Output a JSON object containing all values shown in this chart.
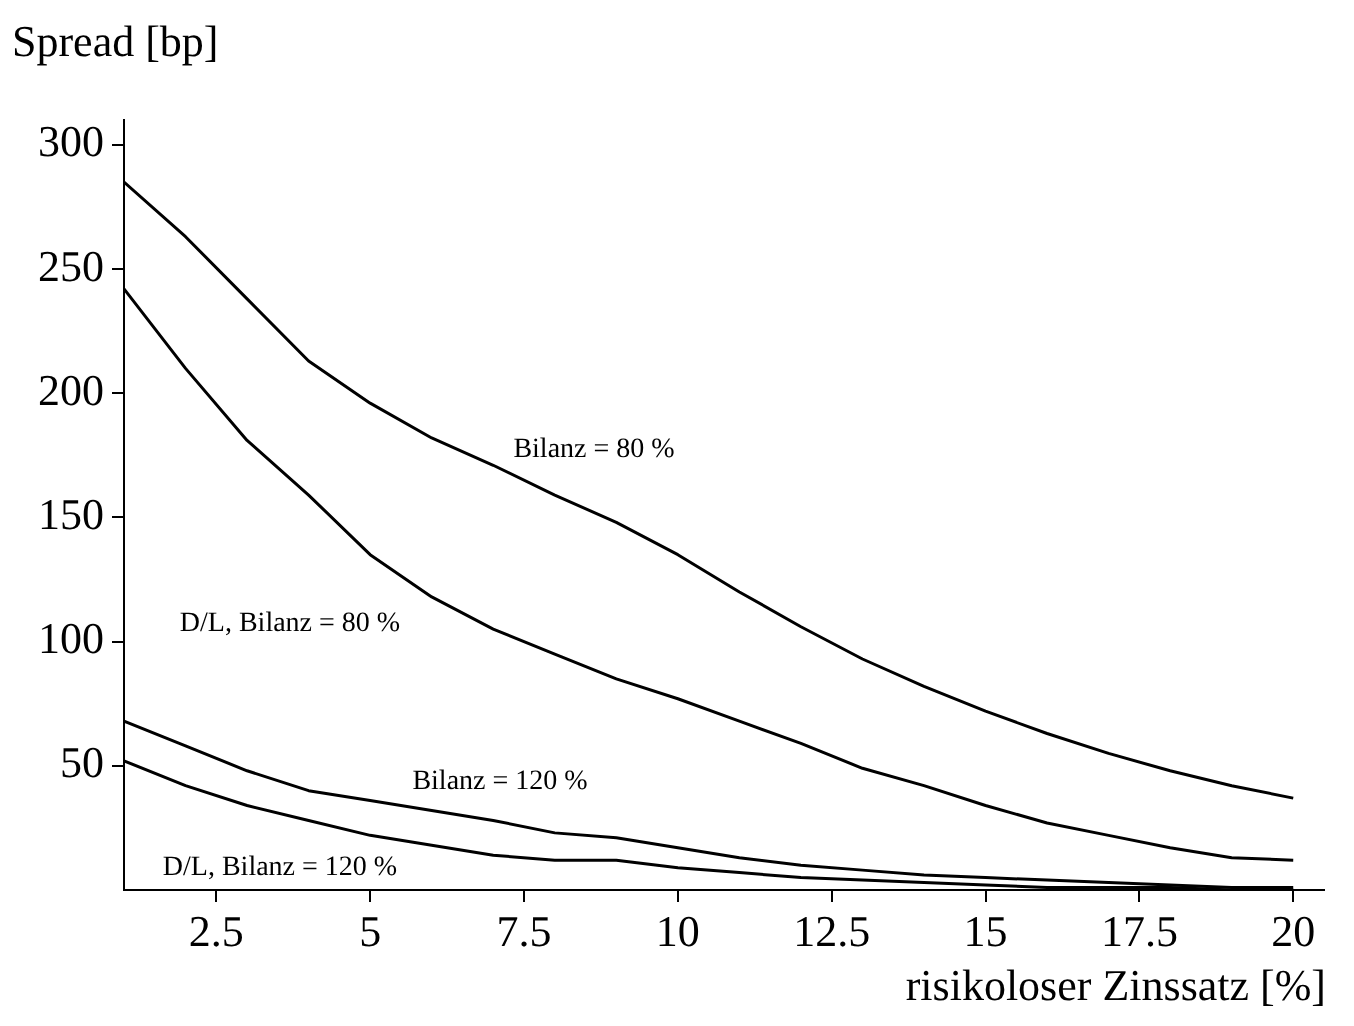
{
  "chart_data": {
    "type": "line",
    "xlabel": "risikoloser Zinssatz [%]",
    "ylabel": "Spread [bp]",
    "x": [
      1,
      2,
      3,
      4,
      5,
      6,
      7,
      8,
      9,
      10,
      11,
      12,
      13,
      14,
      15,
      16,
      17,
      18,
      19,
      20
    ],
    "xlim": [
      1,
      20.5
    ],
    "xticks": [
      2.5,
      5,
      7.5,
      10,
      12.5,
      15,
      17.5,
      20
    ],
    "ylim": [
      0,
      310
    ],
    "yticks": [
      50,
      100,
      150,
      200,
      250,
      300
    ],
    "grid": false,
    "legend": false,
    "marker": "none",
    "line_style": "solid",
    "series": [
      {
        "name": "Bilanz = 80 %",
        "color": "#000000",
        "values": [
          285,
          263,
          238,
          213,
          196,
          182,
          171,
          159,
          148,
          135,
          120,
          106,
          93,
          82,
          72,
          63,
          55,
          48,
          42,
          37
        ]
      },
      {
        "name": "D/L, Bilanz = 80 %",
        "color": "#000000",
        "values": [
          242,
          210,
          181,
          159,
          135,
          118,
          105,
          95,
          85,
          77,
          68,
          59,
          49,
          42,
          34,
          27,
          22,
          17,
          13,
          12
        ]
      },
      {
        "name": "Bilanz = 120 %",
        "color": "#000000",
        "values": [
          68,
          58,
          48,
          40,
          36,
          32,
          28,
          23,
          21,
          17,
          13,
          10,
          8,
          6,
          5,
          4,
          3,
          2,
          1,
          1
        ]
      },
      {
        "name": "D/L, Bilanz = 120 %",
        "color": "#000000",
        "values": [
          52,
          42,
          34,
          28,
          22,
          18,
          14,
          12,
          12,
          9,
          7,
          5,
          4,
          3,
          2,
          1,
          1,
          1,
          0,
          0
        ]
      }
    ]
  }
}
